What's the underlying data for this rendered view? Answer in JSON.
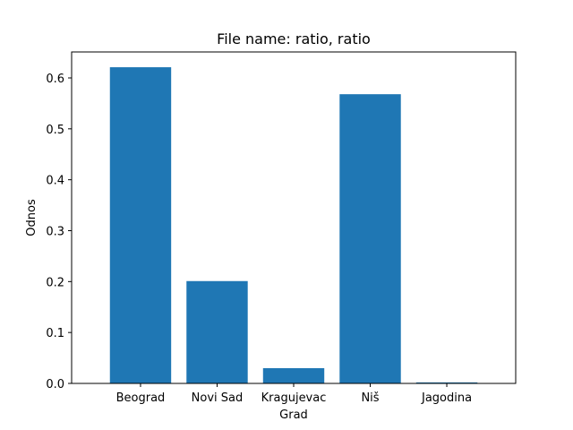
{
  "chart_data": {
    "type": "bar",
    "title": "File name: ratio, ratio",
    "xlabel": "Grad",
    "ylabel": "Odnos",
    "categories": [
      "Beograd",
      "Novi Sad",
      "Kragujevac",
      "Niš",
      "Jagodina"
    ],
    "values": [
      0.621,
      0.201,
      0.03,
      0.568,
      0.002
    ],
    "ylim": [
      0,
      0.651
    ],
    "yticks": [
      0.0,
      0.1,
      0.2,
      0.3,
      0.4,
      0.5,
      0.6
    ],
    "ytick_labels": [
      "0.0",
      "0.1",
      "0.2",
      "0.3",
      "0.4",
      "0.5",
      "0.6"
    ],
    "bar_color": "#1f77b4",
    "grid": false,
    "legend": "none"
  }
}
